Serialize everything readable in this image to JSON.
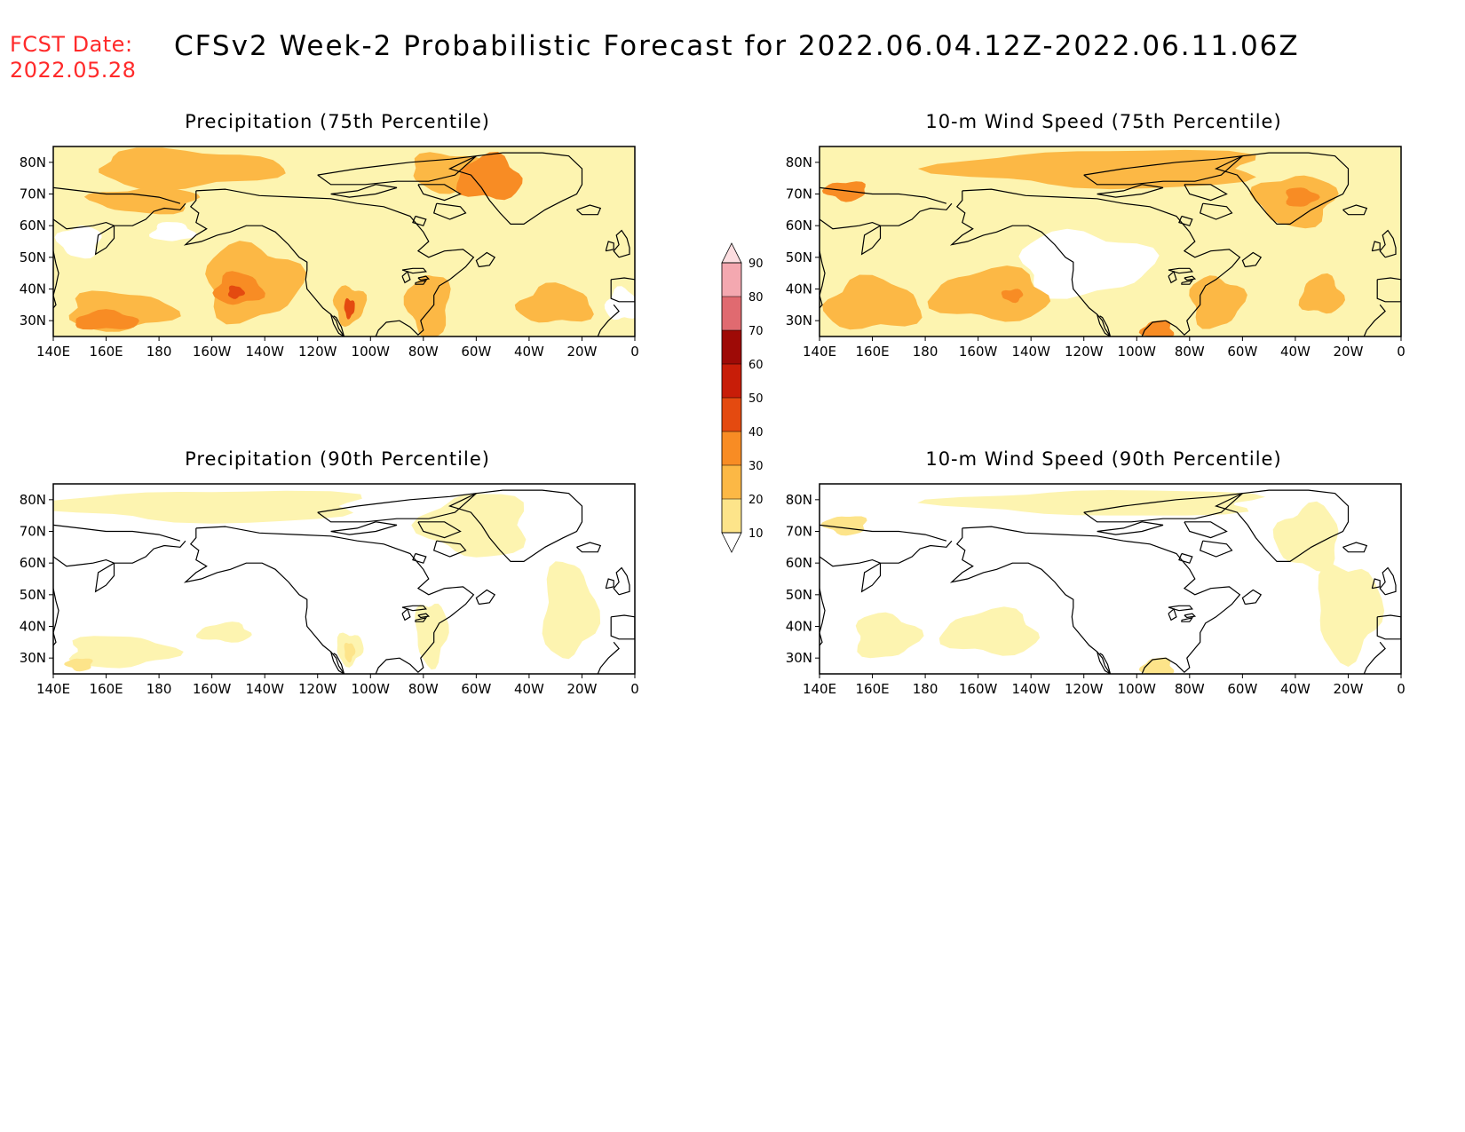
{
  "header": {
    "fcst_label": "FCST Date:",
    "fcst_date": "2022.05.28",
    "title": "CFSv2 Week-2 Probabilistic Forecast for 2022.06.04.12Z-2022.06.11.06Z"
  },
  "lon_ticks": [
    "140E",
    "160E",
    "180",
    "160W",
    "140W",
    "120W",
    "100W",
    "80W",
    "60W",
    "40W",
    "20W",
    "0"
  ],
  "lat_ticks": [
    "80N",
    "70N",
    "60N",
    "50N",
    "40N",
    "30N"
  ],
  "map_extent": {
    "lon_min": 140,
    "lon_max": 360,
    "lat_min": 25,
    "lat_max": 85
  },
  "colorbar": {
    "levels": [
      10,
      20,
      30,
      40,
      50,
      60,
      70,
      80,
      90
    ],
    "labels": [
      "10",
      "20",
      "30",
      "40",
      "50",
      "60",
      "70",
      "80",
      "90"
    ],
    "colors": [
      "#fdf4b0",
      "#fde48a",
      "#fcb845",
      "#f88c24",
      "#e44a10",
      "#c81d08",
      "#9e0a06",
      "#e06a70",
      "#f4a8b0",
      "#fcdde0"
    ]
  },
  "panels": [
    {
      "title": "Precipitation (75th Percentile)",
      "background_level": 1,
      "blobs": [
        {
          "lon": 190,
          "lat": 78,
          "rl": 35,
          "rt": 6,
          "level": 3
        },
        {
          "lon": 290,
          "lat": 77,
          "rl": 15,
          "rt": 6,
          "level": 3
        },
        {
          "lon": 305,
          "lat": 75,
          "rl": 12,
          "rt": 7,
          "level": 4
        },
        {
          "lon": 175,
          "lat": 68,
          "rl": 20,
          "rt": 4,
          "level": 3
        },
        {
          "lon": 215,
          "lat": 42,
          "rl": 18,
          "rt": 12,
          "level": 3
        },
        {
          "lon": 210,
          "lat": 40,
          "rl": 9,
          "rt": 5,
          "level": 4
        },
        {
          "lon": 209,
          "lat": 39,
          "rl": 3,
          "rt": 2,
          "level": 5
        },
        {
          "lon": 165,
          "lat": 33,
          "rl": 20,
          "rt": 6,
          "level": 3
        },
        {
          "lon": 160,
          "lat": 30,
          "rl": 12,
          "rt": 3,
          "level": 4
        },
        {
          "lon": 252,
          "lat": 35,
          "rl": 6,
          "rt": 6,
          "level": 3
        },
        {
          "lon": 252,
          "lat": 34,
          "rl": 2,
          "rt": 3,
          "level": 5
        },
        {
          "lon": 282,
          "lat": 35,
          "rl": 8,
          "rt": 10,
          "level": 3
        },
        {
          "lon": 330,
          "lat": 35,
          "rl": 14,
          "rt": 6,
          "level": 3
        },
        {
          "lon": 150,
          "lat": 55,
          "rl": 8,
          "rt": 5,
          "level": 0
        },
        {
          "lon": 185,
          "lat": 58,
          "rl": 8,
          "rt": 3,
          "level": 0
        },
        {
          "lon": 355,
          "lat": 35,
          "rl": 6,
          "rt": 5,
          "level": 0
        }
      ]
    },
    {
      "title": "10-m Wind Speed (75th Percentile)",
      "background_level": 1,
      "blobs": [
        {
          "lon": 250,
          "lat": 78,
          "rl": 60,
          "rt": 6,
          "level": 3
        },
        {
          "lon": 320,
          "lat": 68,
          "rl": 15,
          "rt": 8,
          "level": 3
        },
        {
          "lon": 322,
          "lat": 69,
          "rl": 6,
          "rt": 3,
          "level": 4
        },
        {
          "lon": 150,
          "lat": 71,
          "rl": 8,
          "rt": 3,
          "level": 4
        },
        {
          "lon": 160,
          "lat": 35,
          "rl": 18,
          "rt": 8,
          "level": 3
        },
        {
          "lon": 205,
          "lat": 38,
          "rl": 22,
          "rt": 8,
          "level": 3
        },
        {
          "lon": 213,
          "lat": 38,
          "rl": 4,
          "rt": 2,
          "level": 4
        },
        {
          "lon": 290,
          "lat": 36,
          "rl": 10,
          "rt": 8,
          "level": 3
        },
        {
          "lon": 268,
          "lat": 27,
          "rl": 6,
          "rt": 3,
          "level": 4
        },
        {
          "lon": 330,
          "lat": 38,
          "rl": 8,
          "rt": 6,
          "level": 3
        },
        {
          "lon": 240,
          "lat": 48,
          "rl": 25,
          "rt": 10,
          "level": 0
        }
      ]
    },
    {
      "title": "Precipitation (90th Percentile)",
      "background_level": 0,
      "blobs": [
        {
          "lon": 200,
          "lat": 78,
          "rl": 60,
          "rt": 5,
          "level": 1
        },
        {
          "lon": 300,
          "lat": 72,
          "rl": 20,
          "rt": 10,
          "level": 1
        },
        {
          "lon": 165,
          "lat": 32,
          "rl": 20,
          "rt": 5,
          "level": 1
        },
        {
          "lon": 150,
          "lat": 28,
          "rl": 5,
          "rt": 2,
          "level": 2
        },
        {
          "lon": 252,
          "lat": 33,
          "rl": 5,
          "rt": 5,
          "level": 1
        },
        {
          "lon": 252,
          "lat": 32,
          "rl": 2,
          "rt": 3,
          "level": 2
        },
        {
          "lon": 283,
          "lat": 38,
          "rl": 6,
          "rt": 10,
          "level": 1
        },
        {
          "lon": 335,
          "lat": 45,
          "rl": 10,
          "rt": 15,
          "level": 1
        },
        {
          "lon": 205,
          "lat": 38,
          "rl": 10,
          "rt": 3,
          "level": 1
        }
      ]
    },
    {
      "title": "10-m Wind Speed (90th Percentile)",
      "background_level": 0,
      "blobs": [
        {
          "lon": 250,
          "lat": 79,
          "rl": 60,
          "rt": 4,
          "level": 1
        },
        {
          "lon": 325,
          "lat": 68,
          "rl": 12,
          "rt": 10,
          "level": 1
        },
        {
          "lon": 150,
          "lat": 72,
          "rl": 8,
          "rt": 3,
          "level": 2
        },
        {
          "lon": 205,
          "lat": 38,
          "rl": 18,
          "rt": 7,
          "level": 1
        },
        {
          "lon": 165,
          "lat": 37,
          "rl": 12,
          "rt": 7,
          "level": 1
        },
        {
          "lon": 268,
          "lat": 27,
          "rl": 6,
          "rt": 3,
          "level": 2
        },
        {
          "lon": 340,
          "lat": 45,
          "rl": 12,
          "rt": 15,
          "level": 1
        }
      ]
    }
  ]
}
